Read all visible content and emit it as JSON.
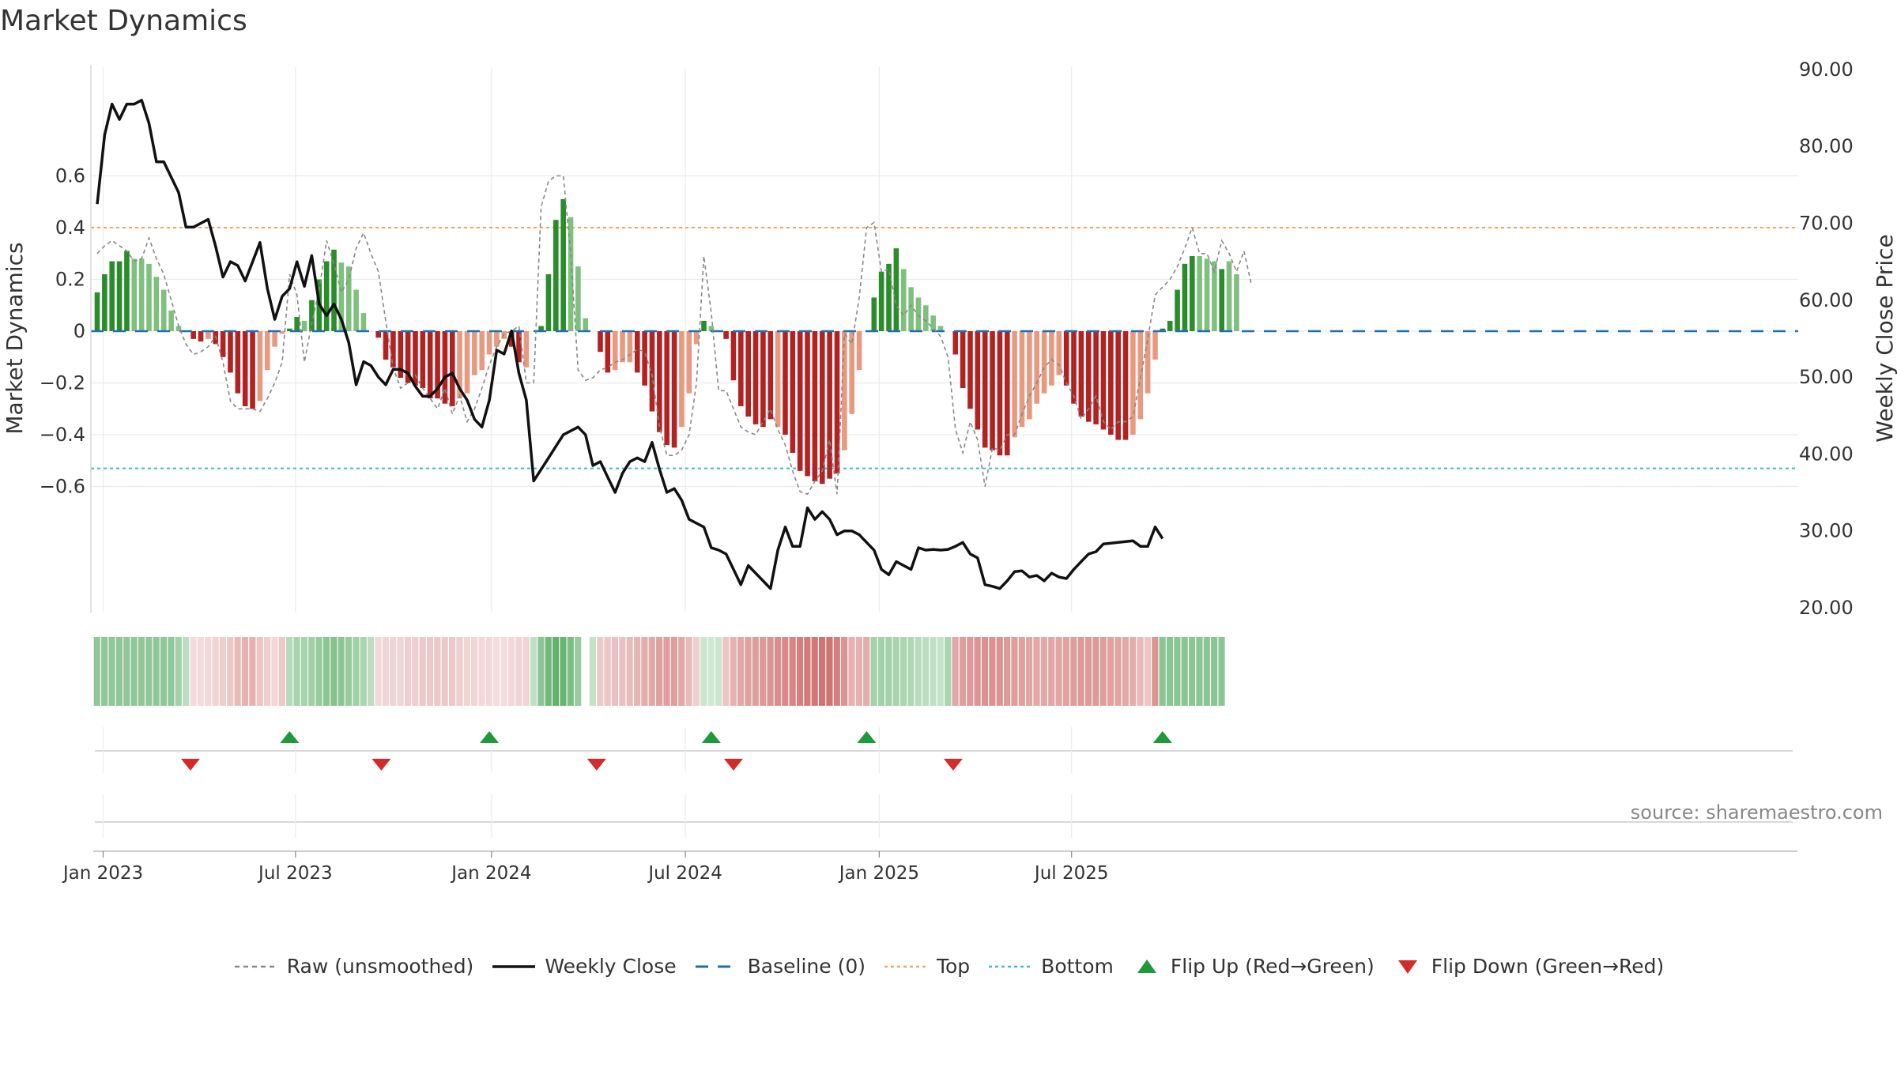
{
  "header": {
    "title": "Market Dynamics"
  },
  "source": "source: sharemaestro.com",
  "colors": {
    "green_dark": "#2a8c2a",
    "green_light": "#7fc07f",
    "red_dark": "#b22222",
    "red_light": "#e79a80",
    "close_line": "#111111",
    "raw_line": "#888888",
    "baseline": "#1f6fb0",
    "top": "#f4a460",
    "bottom": "#40bcc4",
    "flip_up": "#1e9a3c",
    "flip_down": "#d32a2a"
  },
  "legend": [
    {
      "key": "raw",
      "label": "Raw (unsmoothed)",
      "icon": "dashed-line-icon"
    },
    {
      "key": "close",
      "label": "Weekly Close",
      "icon": "solid-line-icon"
    },
    {
      "key": "baseline",
      "label": "Baseline (0)",
      "icon": "dashed-line-icon"
    },
    {
      "key": "top",
      "label": "Top",
      "icon": "dotted-line-icon"
    },
    {
      "key": "bottom",
      "label": "Bottom",
      "icon": "dotted-line-icon"
    },
    {
      "key": "flip_up",
      "label": "Flip Up (Red→Green)",
      "icon": "triangle-up-icon"
    },
    {
      "key": "flip_down",
      "label": "Flip Down (Green→Red)",
      "icon": "triangle-down-icon"
    }
  ],
  "chart_data": {
    "type": "bar",
    "title": "Market Dynamics",
    "ylabel": "Market Dynamics",
    "y2label": "Weekly Close Price",
    "ylim": [
      -0.63,
      0.6
    ],
    "y2lim": [
      20,
      90
    ],
    "yticks": [
      0.6,
      0.4,
      0.2,
      0,
      -0.2,
      -0.4,
      -0.6
    ],
    "ytick_labels": [
      "0.6",
      "0.4",
      "0.2",
      "0",
      "−0.2",
      "−0.4",
      "−0.6"
    ],
    "y2ticks": [
      90,
      80,
      70,
      60,
      50,
      40,
      30,
      20
    ],
    "y2tick_labels": [
      "90.00",
      "80.00",
      "70.00",
      "60.00",
      "50.00",
      "40.00",
      "30.00",
      "20.00"
    ],
    "xtick_weeks": [
      0.8,
      26.8,
      53.3,
      79.5,
      105.7,
      131.7
    ],
    "xtick_labels": [
      "Jan 2023",
      "Jul 2023",
      "Jan 2024",
      "Jul 2024",
      "Jan 2025",
      "Jul 2025"
    ],
    "top_level": 0.4,
    "bottom_level": -0.53,
    "baseline": 0,
    "grid": true,
    "legend_position": "bottom",
    "bars": [
      0.15,
      0.22,
      0.27,
      0.27,
      0.31,
      0.28,
      0.28,
      0.26,
      0.21,
      0.16,
      0.08,
      0.02,
      0,
      -0.03,
      -0.04,
      -0.03,
      -0.05,
      -0.1,
      -0.16,
      -0.24,
      -0.29,
      -0.3,
      -0.27,
      -0.15,
      -0.06,
      -0.01,
      0.01,
      0.055,
      0.04,
      0.12,
      0.2,
      0.27,
      0.315,
      0.265,
      0.25,
      0.16,
      0.07,
      0,
      -0.025,
      -0.11,
      -0.14,
      -0.18,
      -0.2,
      -0.21,
      -0.22,
      -0.26,
      -0.26,
      -0.28,
      -0.29,
      -0.26,
      -0.24,
      -0.17,
      -0.15,
      -0.09,
      -0.06,
      -0.03,
      -0.06,
      -0.12,
      -0.14,
      0,
      0.02,
      0.22,
      0.43,
      0.51,
      0.44,
      0.25,
      0.05,
      null,
      -0.08,
      -0.16,
      -0.15,
      -0.12,
      -0.12,
      -0.16,
      -0.21,
      -0.31,
      -0.39,
      -0.44,
      -0.45,
      -0.37,
      -0.24,
      -0.05,
      0.04,
      0.02,
      0,
      -0.03,
      -0.19,
      -0.29,
      -0.33,
      -0.36,
      -0.37,
      -0.34,
      -0.37,
      -0.4,
      -0.47,
      -0.54,
      -0.56,
      -0.58,
      -0.59,
      -0.57,
      -0.55,
      -0.46,
      -0.32,
      -0.15,
      0,
      0.13,
      0.23,
      0.26,
      0.32,
      0.24,
      0.17,
      0.13,
      0.1,
      0.06,
      0.02,
      0,
      -0.09,
      -0.22,
      -0.3,
      -0.38,
      -0.45,
      -0.46,
      -0.48,
      -0.48,
      -0.41,
      -0.37,
      -0.34,
      -0.28,
      -0.24,
      -0.21,
      -0.17,
      -0.21,
      -0.28,
      -0.33,
      -0.35,
      -0.36,
      -0.38,
      -0.4,
      -0.42,
      -0.42,
      -0.4,
      -0.34,
      -0.24,
      -0.11,
      0.01,
      0.04,
      0.16,
      0.26,
      0.29,
      0.29,
      0.28,
      0.27,
      0.24,
      0.27,
      0.22
    ],
    "bar_colors": [
      "G",
      "G",
      "G",
      "G",
      "G",
      "g",
      "g",
      "g",
      "g",
      "g",
      "g",
      "g",
      "g",
      "R",
      "R",
      "r",
      "R",
      "R",
      "R",
      "R",
      "R",
      "R",
      "r",
      "r",
      "r",
      "r",
      "G",
      "G",
      "g",
      "G",
      "G",
      "G",
      "G",
      "g",
      "g",
      "g",
      "g",
      "g",
      "R",
      "R",
      "R",
      "R",
      "R",
      "R",
      "R",
      "R",
      "R",
      "R",
      "R",
      "r",
      "r",
      "r",
      "r",
      "r",
      "r",
      "r",
      "R",
      "R",
      "r",
      "G",
      "G",
      "G",
      "G",
      "G",
      "g",
      "g",
      "g",
      "g",
      "R",
      "R",
      "r",
      "r",
      "r",
      "R",
      "R",
      "R",
      "R",
      "R",
      "R",
      "r",
      "r",
      "r",
      "G",
      "g",
      "g",
      "R",
      "R",
      "R",
      "R",
      "R",
      "R",
      "R",
      "r",
      "R",
      "R",
      "R",
      "R",
      "R",
      "R",
      "R",
      "R",
      "r",
      "r",
      "r",
      "r",
      "G",
      "G",
      "G",
      "G",
      "g",
      "g",
      "g",
      "g",
      "g",
      "g",
      "g",
      "R",
      "R",
      "R",
      "R",
      "R",
      "R",
      "R",
      "R",
      "r",
      "r",
      "r",
      "r",
      "r",
      "r",
      "r",
      "R",
      "R",
      "R",
      "R",
      "R",
      "R",
      "R",
      "R",
      "R",
      "r",
      "r",
      "r",
      "r",
      "G",
      "G",
      "G",
      "G",
      "G",
      "g",
      "g",
      "g",
      "G",
      "g"
    ],
    "raw": [
      0.3,
      0.33,
      0.35,
      0.33,
      0.31,
      0.27,
      0.28,
      0.36,
      0.28,
      0.22,
      0.12,
      0.02,
      -0.05,
      -0.09,
      -0.08,
      -0.06,
      -0.02,
      -0.12,
      -0.27,
      -0.3,
      -0.3,
      -0.3,
      -0.31,
      -0.26,
      -0.2,
      -0.12,
      0.22,
      0.14,
      -0.12,
      0.03,
      0.16,
      0.35,
      0.26,
      0.15,
      0.2,
      0.32,
      0.38,
      0.3,
      0.23,
      0.04,
      -0.14,
      -0.22,
      -0.2,
      -0.17,
      -0.22,
      -0.26,
      -0.3,
      -0.22,
      -0.32,
      -0.25,
      -0.35,
      -0.3,
      -0.22,
      -0.13,
      -0.06,
      -0.01,
      0,
      0.02,
      -0.2,
      -0.2,
      0.48,
      0.58,
      0.6,
      0.6,
      0.3,
      -0.15,
      -0.19,
      -0.18,
      -0.15,
      -0.14,
      -0.12,
      -0.11,
      -0.09,
      -0.07,
      -0.08,
      -0.17,
      -0.37,
      -0.48,
      -0.48,
      -0.46,
      -0.4,
      -0.2,
      0.29,
      0.07,
      -0.23,
      -0.23,
      -0.3,
      -0.37,
      -0.39,
      -0.4,
      -0.35,
      -0.3,
      -0.38,
      -0.44,
      -0.54,
      -0.62,
      -0.63,
      -0.58,
      -0.54,
      -0.42,
      -0.63,
      -0.01,
      -0.05,
      0.13,
      0.4,
      0.42,
      0.23,
      0.24,
      0.1,
      0.06,
      0.1,
      0.06,
      0.04,
      0.01,
      -0.02,
      -0.1,
      -0.38,
      -0.47,
      -0.35,
      -0.42,
      -0.6,
      -0.45,
      -0.46,
      -0.4,
      -0.4,
      -0.32,
      -0.25,
      -0.2,
      -0.14,
      -0.11,
      -0.13,
      -0.2,
      -0.25,
      -0.34,
      -0.3,
      -0.25,
      -0.35,
      -0.38,
      -0.35,
      -0.35,
      -0.33,
      -0.18,
      -0.03,
      0.14,
      0.17,
      0.2,
      0.25,
      0.32,
      0.4,
      0.3,
      0.3,
      0.23,
      0.35,
      0.3,
      0.23,
      0.31,
      0.18
    ],
    "close": [
      72.5,
      81.5,
      85.5,
      83.5,
      85.5,
      85.5,
      86,
      83,
      78,
      78,
      76,
      74,
      69.5,
      69.5,
      70,
      70.5,
      67,
      63,
      65,
      64.5,
      62.5,
      65,
      67.5,
      61.5,
      57.5,
      60.5,
      61.5,
      65,
      61.8,
      65.8,
      59.5,
      58,
      59.5,
      57.5,
      54.5,
      49,
      52,
      51.5,
      50,
      49,
      51,
      51,
      50.5,
      48.8,
      47.5,
      47.5,
      48.5,
      50,
      50.5,
      48.5,
      47,
      44.5,
      43.5,
      47,
      53.5,
      53,
      56,
      50.5,
      47,
      36.5,
      38,
      39.5,
      41,
      42.5,
      43,
      43.5,
      42.5,
      38.5,
      39,
      37,
      35,
      37.5,
      39,
      39.5,
      39,
      41.5,
      38,
      35,
      35.5,
      34,
      31.5,
      31,
      30.5,
      27.8,
      27.5,
      27,
      25,
      23,
      25.5,
      24.5,
      23.5,
      22.5,
      27.5,
      30.5,
      28,
      28,
      33,
      31.5,
      32.5,
      31.5,
      29.5,
      30,
      30,
      29.5,
      28.5,
      27.5,
      25,
      24.3,
      26,
      25.5,
      25,
      27.8,
      27.5,
      27.6,
      27.5,
      27.6,
      28,
      28.5,
      27,
      26.5,
      23,
      22.8,
      22.5,
      23.5,
      24.7,
      24.8,
      24,
      24.2,
      23.5,
      24.5,
      24,
      23.8,
      25,
      26,
      27,
      27.3,
      28.3,
      28.4,
      28.5,
      28.6,
      28.7,
      28,
      28,
      30.5,
      29
    ],
    "flip_up_weeks": [
      26,
      53,
      83,
      104,
      144
    ],
    "flip_down_weeks": [
      12.6,
      38.4,
      67.5,
      86,
      115.7
    ],
    "heat_strip": [
      0.53,
      0.53,
      0.53,
      0.53,
      0.53,
      0.53,
      0.53,
      0.53,
      0.53,
      0.53,
      0.53,
      0.44,
      0.32,
      0.18,
      0.18,
      0.2,
      0.22,
      0.25,
      0.28,
      0.35,
      0.4,
      0.4,
      0.3,
      0.25,
      0.2,
      0.28,
      0.35,
      0.42,
      0.42,
      0.45,
      0.5,
      0.55,
      0.58,
      0.55,
      0.5,
      0.45,
      0.4,
      0.32,
      0.2,
      0.22,
      0.22,
      0.22,
      0.25,
      0.25,
      0.28,
      0.28,
      0.28,
      0.28,
      0.28,
      0.25,
      0.22,
      0.22,
      0.2,
      0.2,
      0.18,
      0.18,
      0.2,
      0.22,
      0.22,
      0.3,
      0.55,
      0.68,
      0.75,
      0.72,
      0.62,
      0.5,
      null,
      0.28,
      0.28,
      0.3,
      0.32,
      0.32,
      0.35,
      0.38,
      0.42,
      0.45,
      0.48,
      0.5,
      0.5,
      0.45,
      0.35,
      0.25,
      0.25,
      0.22,
      0.25,
      0.3,
      0.4,
      0.45,
      0.48,
      0.5,
      0.52,
      0.55,
      0.58,
      0.6,
      0.62,
      0.65,
      0.68,
      0.7,
      0.72,
      0.72,
      0.65,
      0.55,
      0.4,
      0.4,
      0.42,
      0.44,
      0.44,
      0.44,
      0.42,
      0.4,
      0.38,
      0.35,
      0.32,
      0.3,
      0.28,
      0.4,
      0.45,
      0.5,
      0.52,
      0.55,
      0.56,
      0.56,
      0.55,
      0.52,
      0.5,
      0.48,
      0.46,
      0.45,
      0.45,
      0.45,
      0.46,
      0.48,
      0.5,
      0.52,
      0.52,
      0.52,
      0.5,
      0.48,
      0.46,
      0.44,
      0.42,
      0.35,
      0.3,
      0.55,
      0.55,
      0.55,
      0.55,
      0.55,
      0.55,
      0.55,
      0.55,
      0.55,
      0.55
    ]
  }
}
